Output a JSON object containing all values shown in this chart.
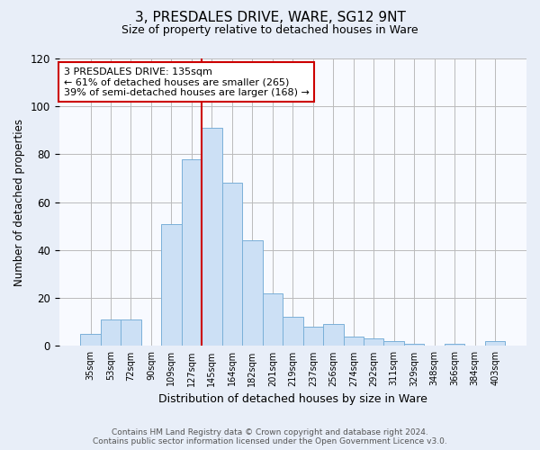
{
  "title1": "3, PRESDALES DRIVE, WARE, SG12 9NT",
  "title2": "Size of property relative to detached houses in Ware",
  "xlabel": "Distribution of detached houses by size in Ware",
  "ylabel": "Number of detached properties",
  "categories": [
    "35sqm",
    "53sqm",
    "72sqm",
    "90sqm",
    "109sqm",
    "127sqm",
    "145sqm",
    "164sqm",
    "182sqm",
    "201sqm",
    "219sqm",
    "237sqm",
    "256sqm",
    "274sqm",
    "292sqm",
    "311sqm",
    "329sqm",
    "348sqm",
    "366sqm",
    "384sqm",
    "403sqm"
  ],
  "values": [
    5,
    11,
    11,
    0,
    51,
    78,
    91,
    68,
    44,
    22,
    12,
    8,
    9,
    4,
    3,
    2,
    1,
    0,
    1,
    0,
    2
  ],
  "bar_color": "#cce0f5",
  "bar_edge_color": "#7ab0d8",
  "bar_width": 1.0,
  "vline_index": 5.5,
  "vline_color": "#cc0000",
  "annotation_text": "3 PRESDALES DRIVE: 135sqm\n← 61% of detached houses are smaller (265)\n39% of semi-detached houses are larger (168) →",
  "annotation_box_color": "#ffffff",
  "annotation_box_edge": "#cc0000",
  "ylim": [
    0,
    120
  ],
  "yticks": [
    0,
    20,
    40,
    60,
    80,
    100,
    120
  ],
  "footer1": "Contains HM Land Registry data © Crown copyright and database right 2024.",
  "footer2": "Contains public sector information licensed under the Open Government Licence v3.0.",
  "bg_color": "#e8eef8",
  "plot_bg_color": "#f8faff"
}
